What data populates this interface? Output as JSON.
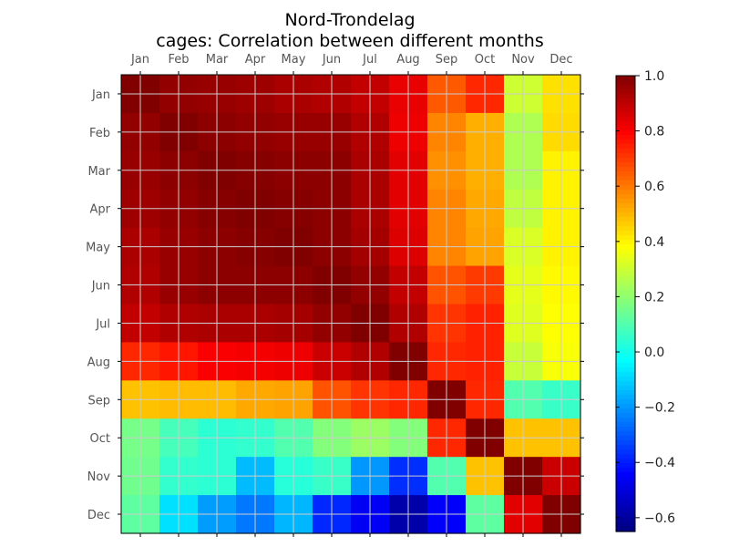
{
  "chart_data": {
    "type": "heatmap",
    "title": "Nord-Trondelag",
    "subtitle": "cages: Correlation between different months",
    "categories": [
      "Jan",
      "Feb",
      "Mar",
      "Apr",
      "May",
      "Jun",
      "Jul",
      "Aug",
      "Sep",
      "Oct",
      "Nov",
      "Dec"
    ],
    "values": [
      [
        1.0,
        0.97,
        0.96,
        0.95,
        0.93,
        0.92,
        0.89,
        0.83,
        0.65,
        0.73,
        0.3,
        0.43
      ],
      [
        0.97,
        1.0,
        0.98,
        0.97,
        0.96,
        0.96,
        0.92,
        0.82,
        0.58,
        0.51,
        0.25,
        0.44
      ],
      [
        0.96,
        0.98,
        1.0,
        0.99,
        0.98,
        0.98,
        0.93,
        0.84,
        0.56,
        0.51,
        0.25,
        0.4
      ],
      [
        0.95,
        0.97,
        0.99,
        1.0,
        0.99,
        0.98,
        0.93,
        0.84,
        0.58,
        0.52,
        0.28,
        0.4
      ],
      [
        0.93,
        0.96,
        0.98,
        0.99,
        1.0,
        0.98,
        0.94,
        0.85,
        0.58,
        0.53,
        0.32,
        0.4
      ],
      [
        0.92,
        0.96,
        0.98,
        0.98,
        0.98,
        1.0,
        0.97,
        0.89,
        0.66,
        0.7,
        0.34,
        0.39
      ],
      [
        0.89,
        0.92,
        0.93,
        0.93,
        0.94,
        0.97,
        1.0,
        0.92,
        0.71,
        0.74,
        0.33,
        0.38
      ],
      [
        0.73,
        0.76,
        0.8,
        0.81,
        0.82,
        0.88,
        0.92,
        1.0,
        0.73,
        0.74,
        0.29,
        0.37
      ],
      [
        0.48,
        0.49,
        0.49,
        0.52,
        0.53,
        0.66,
        0.71,
        0.73,
        1.0,
        0.73,
        0.1,
        0.06
      ],
      [
        0.16,
        0.08,
        0.04,
        0.05,
        0.1,
        0.18,
        0.22,
        0.18,
        0.73,
        1.0,
        0.48,
        0.48
      ],
      [
        0.15,
        0.05,
        0.04,
        -0.14,
        0.03,
        0.06,
        -0.2,
        -0.37,
        0.1,
        0.48,
        1.0,
        0.88
      ],
      [
        0.12,
        -0.08,
        -0.19,
        -0.25,
        -0.15,
        -0.38,
        -0.46,
        -0.58,
        -0.45,
        0.12,
        0.84,
        1.0
      ]
    ],
    "colorbar": {
      "min": -0.65,
      "max": 1.0,
      "ticks": [
        "1.0",
        "0.8",
        "0.6",
        "0.4",
        "0.2",
        "0.0",
        "−0.2",
        "−0.4",
        "−0.6"
      ],
      "colormap": "jet"
    },
    "grid": true
  }
}
